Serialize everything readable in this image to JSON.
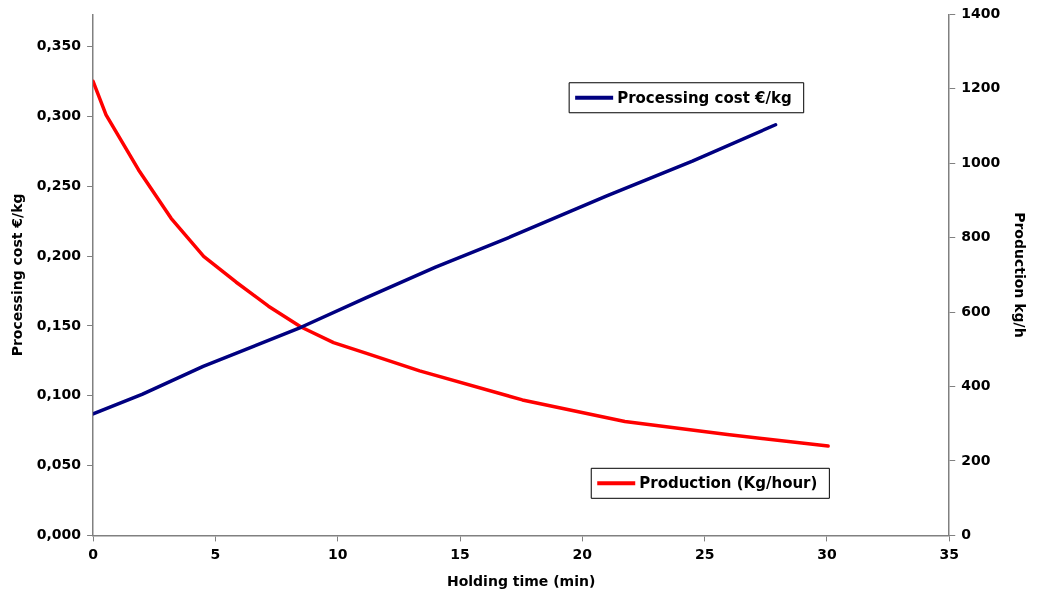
{
  "chart_data": {
    "type": "line",
    "xlabel": "Holding time (min)",
    "ylabel": "Processing cost €/kg",
    "y2label": "Production kg/h",
    "xlim": [
      0,
      35
    ],
    "xticks": [
      0,
      5,
      10,
      15,
      20,
      25,
      30,
      35
    ],
    "ylim": [
      0,
      0.373
    ],
    "yticks": [
      {
        "value": 0,
        "label": "0,000"
      },
      {
        "value": 0.05,
        "label": "0,050"
      },
      {
        "value": 0.1,
        "label": "0,100"
      },
      {
        "value": 0.15,
        "label": "0,150"
      },
      {
        "value": 0.2,
        "label": "0,200"
      },
      {
        "value": 0.25,
        "label": "0,250"
      },
      {
        "value": 0.3,
        "label": "0,300"
      },
      {
        "value": 0.35,
        "label": "0,350"
      }
    ],
    "y2lim": [
      0,
      1400
    ],
    "y2ticks": [
      0,
      200,
      400,
      600,
      800,
      1000,
      1200,
      1400
    ],
    "grid": false,
    "legend": "right",
    "marker": "none",
    "line_style": "solid",
    "series": [
      {
        "name": "Processing cost €/kg",
        "color": "#000080",
        "x": [
          0,
          2,
          4.5,
          8.5,
          11.15,
          14,
          17.1,
          21,
          24.5,
          27.9
        ],
        "values": [
          0.087,
          0.101,
          0.121,
          0.149,
          0.17,
          0.192,
          0.214,
          0.243,
          0.268,
          0.294
        ]
      },
      {
        "name": "Production (Kg/hour)",
        "color": "#ff0000",
        "axis": "y2",
        "x": [
          0,
          0.53,
          1.86,
          3.19,
          4.52,
          5.84,
          7.17,
          8.5,
          9.83,
          11.15,
          13.35,
          17.55,
          21.74,
          25.93,
          30.05
        ],
        "values": [
          1220,
          1130,
          982,
          852,
          750,
          681,
          616,
          560,
          518,
          490,
          442,
          364,
          306,
          271,
          240
        ]
      }
    ]
  }
}
